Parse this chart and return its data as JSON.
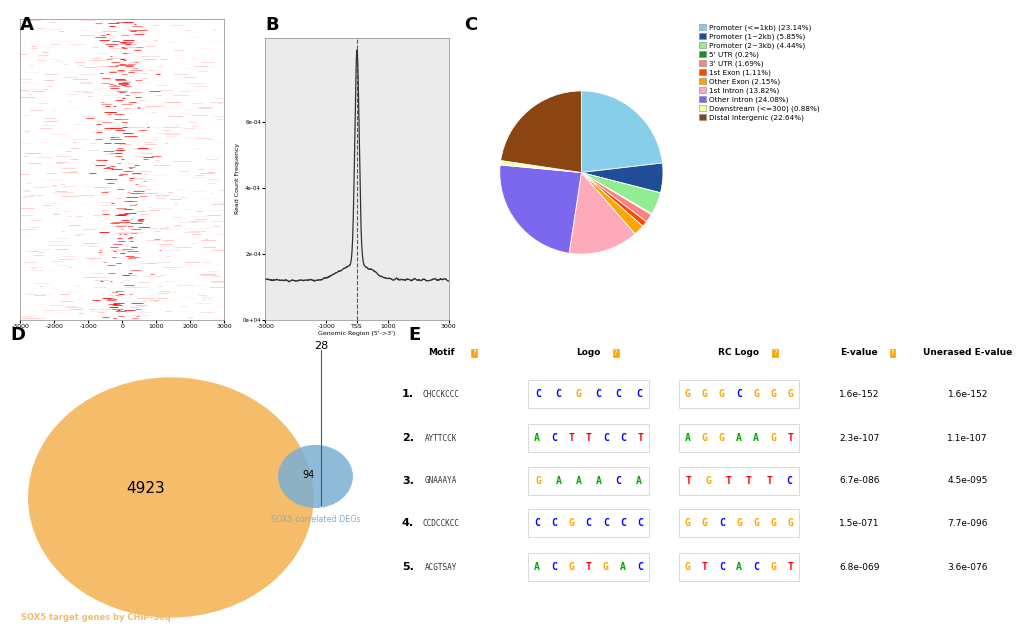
{
  "pie_labels": [
    "Promoter (<=1kb) (23.14%)",
    "Promoter (1~2kb) (5.85%)",
    "Promoter (2~3kb) (4.44%)",
    "5' UTR (0.2%)",
    "3' UTR (1.69%)",
    "1st Exon (1.11%)",
    "Other Exon (2.15%)",
    "1st Intron (13.82%)",
    "Other Intron (24.08%)",
    "Downstream (<=300) (0.88%)",
    "Distal Intergenic (22.64%)"
  ],
  "pie_values": [
    23.14,
    5.85,
    4.44,
    0.2,
    1.69,
    1.11,
    2.15,
    13.82,
    24.08,
    0.88,
    22.64
  ],
  "pie_colors": [
    "#87CEEB",
    "#1F4E96",
    "#90EE90",
    "#228B22",
    "#FF8080",
    "#FF4500",
    "#FFA500",
    "#FFAABB",
    "#7B68EE",
    "#FFFFAA",
    "#8B4513"
  ],
  "venn_large_label": "SOX5 target genes by CHIP-Seq",
  "venn_large_count": "4923",
  "venn_small_label": "SOX5 correlated DEGs",
  "venn_outer_count": "28",
  "venn_overlap_count": "94",
  "venn_large_color": "#F5BC6A",
  "venn_small_color": "#7BAFD4",
  "motif_numbers": [
    "1.",
    "2.",
    "3.",
    "4.",
    "5."
  ],
  "motif_names": [
    "CHCCKCCC",
    "AYTTCCK",
    "GNAAAYA",
    "CCDCCKCC",
    "ACGTSAY"
  ],
  "motif_evalues": [
    "1.6e-152",
    "2.3e-107",
    "6.7e-086",
    "1.5e-071",
    "6.8e-069"
  ],
  "motif_unerased": [
    "1.6e-152",
    "1.1e-107",
    "4.5e-095",
    "7.7e-096",
    "3.6e-076"
  ],
  "logo_seqs": [
    [
      "C",
      "C",
      "G",
      "C",
      "C",
      "C"
    ],
    [
      "A",
      "C",
      "T",
      "T",
      "C",
      "C",
      "T"
    ],
    [
      "G",
      "A",
      "A",
      "A",
      "C",
      "A"
    ],
    [
      "C",
      "C",
      "G",
      "C",
      "C",
      "C",
      "C"
    ],
    [
      "A",
      "C",
      "G",
      "T",
      "G",
      "A",
      "C"
    ]
  ],
  "rc_seqs": [
    [
      "G",
      "G",
      "G",
      "C",
      "G",
      "G",
      "G"
    ],
    [
      "A",
      "G",
      "G",
      "A",
      "A",
      "G",
      "T"
    ],
    [
      "T",
      "G",
      "T",
      "T",
      "T",
      "C"
    ],
    [
      "G",
      "G",
      "C",
      "G",
      "G",
      "G",
      "G"
    ],
    [
      "G",
      "T",
      "C",
      "A",
      "C",
      "G",
      "T"
    ]
  ],
  "bg_color": "#FFFFFF"
}
